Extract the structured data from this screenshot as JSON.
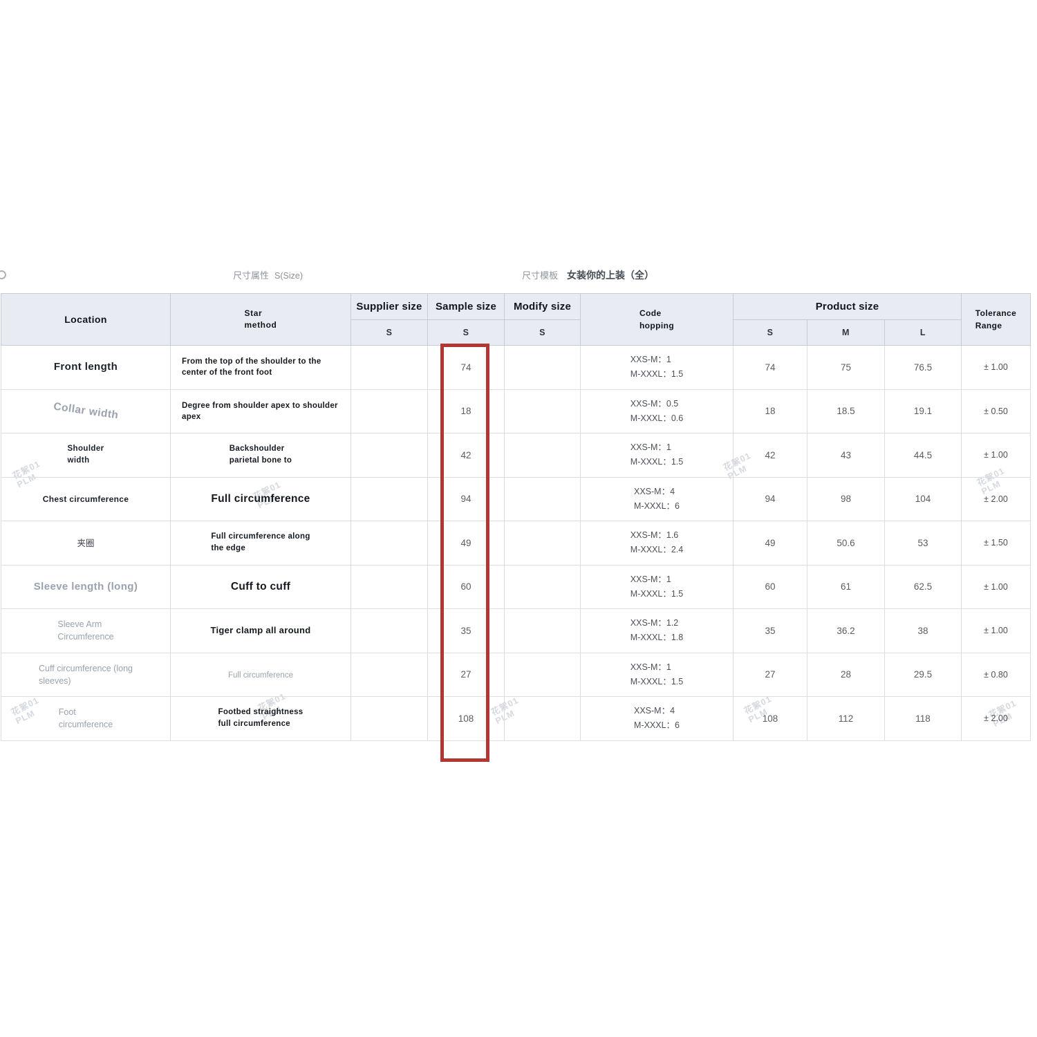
{
  "page_header": {
    "attribute_label": "尺寸属性",
    "attribute_value": "S(Size)",
    "template_label": "尺寸模板",
    "template_value": "女装你的上装（全）"
  },
  "watermark": {
    "text": "花絮01\nPLM"
  },
  "colors": {
    "highlight_red": "#b13732",
    "header_bg": "#e8ebf2"
  },
  "table": {
    "headers": {
      "location": "Location",
      "star_method": "Star\nmethod",
      "supplier_size": "Supplier size",
      "sample_size": "Sample size",
      "modify_size": "Modify size",
      "code_hopping": "Code\nhopping",
      "product_size": "Product size",
      "tolerance": "Tolerance\nRange",
      "sub": {
        "supplier": "S",
        "sample": "S",
        "modify": "S",
        "s": "S",
        "m": "M",
        "l": "L"
      }
    },
    "rows": [
      {
        "location": "Front length",
        "loc_class": "loc-front",
        "method": "From the top of the shoulder to the center of the front foot",
        "method_class": "m-left-sm",
        "supplier": "",
        "sample": "74",
        "modify": "",
        "code": "XXS-M：1\nM-XXXL：1.5",
        "s": "74",
        "m": "75",
        "l": "76.5",
        "tol": "± 1.00"
      },
      {
        "location": "Collar width",
        "loc_class": "loc-collar",
        "method": "Degree from shoulder apex to shoulder apex",
        "method_class": "m-left-sm",
        "supplier": "",
        "sample": "18",
        "modify": "",
        "code": "XXS-M：0.5\nM-XXXL：0.6",
        "s": "18",
        "m": "18.5",
        "l": "19.1",
        "tol": "± 0.50"
      },
      {
        "location": "Shoulder\nwidth",
        "loc_class": "loc-two-bold",
        "method": "Backshoulder\nparietal bone to",
        "method_class": "m-block-sm",
        "supplier": "",
        "sample": "42",
        "modify": "",
        "code": "XXS-M：1\nM-XXXL：1.5",
        "s": "42",
        "m": "43",
        "l": "44.5",
        "tol": "± 1.00"
      },
      {
        "location": "Chest circumference",
        "loc_class": "loc-chest",
        "method": "Full circumference",
        "method_class": "m-big",
        "supplier": "",
        "sample": "94",
        "modify": "",
        "code": "XXS-M：4\nM-XXXL：6",
        "s": "94",
        "m": "98",
        "l": "104",
        "tol": "± 2.00"
      },
      {
        "location": "夹圈",
        "loc_class": "loc-cn",
        "method": "Full circumference along\nthe edge",
        "method_class": "m-block-sm",
        "supplier": "",
        "sample": "49",
        "modify": "",
        "code": "XXS-M：1.6\nM-XXXL：2.4",
        "s": "49",
        "m": "50.6",
        "l": "53",
        "tol": "± 1.50"
      },
      {
        "location": "Sleeve length (long)",
        "loc_class": "loc-sleevelen",
        "method": "Cuff to cuff",
        "method_class": "m-big",
        "supplier": "",
        "sample": "60",
        "modify": "",
        "code": "XXS-M：1\nM-XXXL：1.5",
        "s": "60",
        "m": "61",
        "l": "62.5",
        "tol": "± 1.00"
      },
      {
        "location": "Sleeve Arm\nCircumference",
        "loc_class": "loc-two-gray",
        "method": "Tiger clamp all around",
        "method_class": "m-mid",
        "supplier": "",
        "sample": "35",
        "modify": "",
        "code": "XXS-M：1.2\nM-XXXL：1.8",
        "s": "35",
        "m": "36.2",
        "l": "38",
        "tol": "± 1.00"
      },
      {
        "location": "Cuff circumference (long\nsleeves)",
        "loc_class": "loc-cuff",
        "method": "Full circumference",
        "method_class": "m-gray",
        "supplier": "",
        "sample": "27",
        "modify": "",
        "code": "XXS-M：1\nM-XXXL：1.5",
        "s": "27",
        "m": "28",
        "l": "29.5",
        "tol": "± 0.80"
      },
      {
        "location": "Foot\ncircumference",
        "loc_class": "loc-two-gray",
        "method": "Footbed straightness\nfull circumference",
        "method_class": "m-block-sm",
        "supplier": "",
        "sample": "108",
        "modify": "",
        "code": "XXS-M：4\nM-XXXL：6",
        "s": "108",
        "m": "112",
        "l": "118",
        "tol": "± 2.00"
      }
    ]
  }
}
